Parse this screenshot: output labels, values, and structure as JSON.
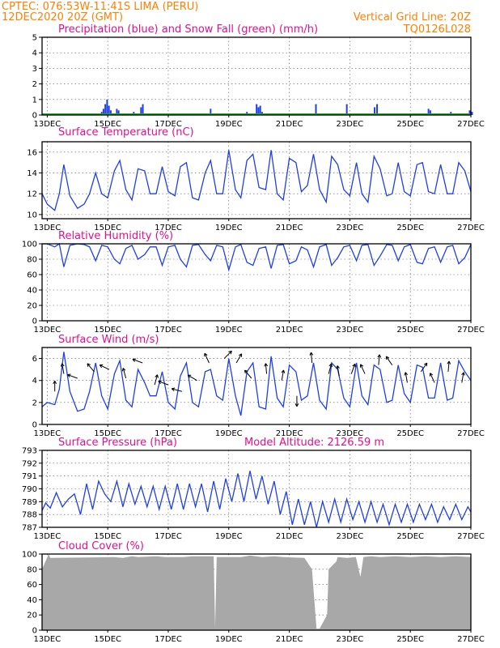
{
  "header": {
    "station": "CPTEC:   076:53W-11:41S   LIMA (PERU)",
    "run": "12DEC2020 20Z (GMT)",
    "grid_note": "Vertical Grid Line: 20Z",
    "code": "TQ0126L028"
  },
  "x_labels": [
    "13DEC",
    "15DEC",
    "17DEC",
    "19DEC",
    "21DEC",
    "23DEC",
    "25DEC",
    "27DEC"
  ],
  "colors": {
    "title": "#e0108c",
    "header": "#ff8000",
    "line": "#1f3fe8",
    "snow": "#22aa22",
    "cloud": "#a8a8a8"
  },
  "panels": {
    "precip": {
      "title": "Precipitation (blue) and Snow Fall (green) (mm/h)"
    },
    "temp": {
      "title": "Surface Temperature (nC)"
    },
    "rh": {
      "title": "Relative Humidity (%)"
    },
    "wind": {
      "title": "Surface Wind (m/s)"
    },
    "pres": {
      "title": "Surface Pressure (hPa)",
      "subtitle": "Model Altitude: 2126.59 m"
    },
    "cloud": {
      "title": "Cloud Cover (%)"
    }
  },
  "chart_data": [
    {
      "id": "precip",
      "type": "bar",
      "title": "Precipitation (blue) and Snow Fall (green) (mm/h)",
      "ylim": [
        0,
        5
      ],
      "yticks": [
        0,
        1,
        2,
        3,
        4,
        5
      ],
      "grid": true,
      "x_unit": "days since 12DEC2020 00Z",
      "x": [
        2.8,
        2.86,
        2.92,
        2.98,
        3.04,
        3.1,
        3.3,
        3.36,
        3.86,
        4.1,
        4.16,
        6.4,
        7.6,
        7.92,
        7.98,
        8.04,
        8.1,
        9.88,
        10.9,
        11.82,
        11.9,
        12.04,
        13.6,
        13.66,
        14.34,
        14.96,
        15.04
      ],
      "values": [
        0.2,
        0.4,
        0.7,
        1.0,
        0.6,
        0.3,
        0.4,
        0.3,
        0.2,
        0.5,
        0.7,
        0.4,
        0.2,
        0.7,
        0.5,
        0.6,
        0.2,
        0.7,
        0.7,
        0.5,
        0.7,
        0.1,
        0.4,
        0.3,
        0.2,
        0.3,
        0.2
      ],
      "series": [
        {
          "name": "Precipitation",
          "color": "blue"
        },
        {
          "name": "Snow Fall",
          "color": "green",
          "values": "0"
        }
      ]
    },
    {
      "id": "temp",
      "type": "line",
      "title": "Surface Temperature (nC)",
      "ylim": [
        9.6,
        17
      ],
      "yticks": [
        10,
        12,
        14,
        16
      ],
      "grid": true,
      "x": [
        0.83,
        1.0,
        1.25,
        1.4,
        1.55,
        1.75,
        2.0,
        2.22,
        2.4,
        2.6,
        2.8,
        3.0,
        3.22,
        3.4,
        3.6,
        3.8,
        4.0,
        4.22,
        4.4,
        4.6,
        4.8,
        5.0,
        5.22,
        5.4,
        5.6,
        5.8,
        6.0,
        6.22,
        6.4,
        6.6,
        6.8,
        7.0,
        7.22,
        7.4,
        7.6,
        7.8,
        8.0,
        8.22,
        8.4,
        8.6,
        8.8,
        9.0,
        9.22,
        9.4,
        9.6,
        9.8,
        10.0,
        10.22,
        10.4,
        10.6,
        10.8,
        11.0,
        11.22,
        11.4,
        11.6,
        11.8,
        12.0,
        12.22,
        12.4,
        12.6,
        12.8,
        13.0,
        13.22,
        13.4,
        13.6,
        13.8,
        14.0,
        14.22,
        14.4,
        14.6,
        14.8,
        15.0
      ],
      "values": [
        12.0,
        11.0,
        10.4,
        12.0,
        14.8,
        11.8,
        10.6,
        11.0,
        12.0,
        14.0,
        12.0,
        11.6,
        14.2,
        15.2,
        12.4,
        11.4,
        14.4,
        14.2,
        12.0,
        12.0,
        14.6,
        12.2,
        11.8,
        14.6,
        15.0,
        11.6,
        11.4,
        14.0,
        15.2,
        12.0,
        12.0,
        16.2,
        12.4,
        11.6,
        15.2,
        15.8,
        12.6,
        12.4,
        16.2,
        12.0,
        11.4,
        15.4,
        15.0,
        12.2,
        12.8,
        15.8,
        12.4,
        11.2,
        15.6,
        14.8,
        12.4,
        11.8,
        15.0,
        12.0,
        11.2,
        15.6,
        14.4,
        11.8,
        12.0,
        15.0,
        12.2,
        11.8,
        14.8,
        15.0,
        12.2,
        12.0,
        14.8,
        12.0,
        12.0,
        15.0,
        14.2,
        12.2
      ]
    },
    {
      "id": "rh",
      "type": "line",
      "title": "Relative Humidity (%)",
      "ylim": [
        0,
        100
      ],
      "yticks": [
        0,
        20,
        40,
        60,
        80,
        100
      ],
      "grid": true,
      "x": [
        0.83,
        1.0,
        1.25,
        1.4,
        1.55,
        1.75,
        2.0,
        2.22,
        2.4,
        2.6,
        2.8,
        3.0,
        3.22,
        3.4,
        3.6,
        3.8,
        4.0,
        4.22,
        4.4,
        4.6,
        4.8,
        5.0,
        5.22,
        5.4,
        5.6,
        5.8,
        6.0,
        6.22,
        6.4,
        6.6,
        6.8,
        7.0,
        7.22,
        7.4,
        7.6,
        7.8,
        8.0,
        8.22,
        8.4,
        8.6,
        8.8,
        9.0,
        9.22,
        9.4,
        9.6,
        9.8,
        10.0,
        10.22,
        10.4,
        10.6,
        10.8,
        11.0,
        11.22,
        11.4,
        11.6,
        11.8,
        12.0,
        12.22,
        12.4,
        12.6,
        12.8,
        13.0,
        13.22,
        13.4,
        13.6,
        13.8,
        14.0,
        14.22,
        14.4,
        14.6,
        14.8,
        15.0
      ],
      "values": [
        100,
        100,
        96,
        100,
        70,
        98,
        100,
        99,
        96,
        78,
        98,
        96,
        80,
        74,
        94,
        98,
        80,
        86,
        96,
        96,
        72,
        96,
        98,
        80,
        70,
        98,
        99,
        86,
        78,
        98,
        96,
        66,
        96,
        99,
        76,
        72,
        94,
        96,
        68,
        98,
        99,
        74,
        78,
        96,
        92,
        70,
        96,
        99,
        72,
        82,
        96,
        98,
        78,
        98,
        99,
        72,
        84,
        99,
        98,
        78,
        96,
        99,
        76,
        74,
        94,
        96,
        76,
        96,
        98,
        74,
        82,
        99
      ]
    },
    {
      "id": "wind",
      "type": "line",
      "title": "Surface Wind (m/s)",
      "ylim": [
        0,
        7
      ],
      "yticks": [
        0,
        2,
        4,
        6
      ],
      "grid": true,
      "x": [
        0.83,
        1.0,
        1.25,
        1.4,
        1.55,
        1.75,
        2.0,
        2.22,
        2.4,
        2.6,
        2.8,
        3.0,
        3.22,
        3.4,
        3.6,
        3.8,
        4.0,
        4.22,
        4.4,
        4.6,
        4.8,
        5.0,
        5.22,
        5.4,
        5.6,
        5.8,
        6.0,
        6.22,
        6.4,
        6.6,
        6.8,
        7.0,
        7.22,
        7.4,
        7.6,
        7.8,
        8.0,
        8.22,
        8.4,
        8.6,
        8.8,
        9.0,
        9.22,
        9.4,
        9.6,
        9.8,
        10.0,
        10.22,
        10.4,
        10.6,
        10.8,
        11.0,
        11.22,
        11.4,
        11.6,
        11.8,
        12.0,
        12.22,
        12.4,
        12.6,
        12.8,
        13.0,
        13.22,
        13.4,
        13.6,
        13.8,
        14.0,
        14.22,
        14.4,
        14.6,
        14.8,
        15.0
      ],
      "values": [
        1.6,
        2.0,
        1.8,
        3.2,
        6.6,
        3.0,
        1.2,
        1.4,
        3.0,
        5.6,
        2.6,
        1.4,
        4.6,
        5.8,
        2.2,
        1.6,
        5.0,
        3.8,
        2.6,
        2.6,
        4.8,
        2.0,
        1.4,
        4.4,
        5.6,
        2.0,
        1.6,
        4.8,
        5.0,
        2.6,
        2.2,
        6.0,
        2.6,
        0.8,
        4.8,
        5.6,
        1.6,
        1.4,
        6.2,
        2.4,
        1.6,
        5.4,
        4.8,
        2.2,
        2.6,
        5.6,
        2.2,
        1.4,
        5.6,
        5.0,
        2.4,
        1.6,
        5.6,
        2.6,
        1.8,
        5.4,
        5.0,
        2.0,
        2.2,
        5.4,
        2.8,
        2.0,
        5.4,
        5.2,
        2.4,
        2.4,
        5.6,
        2.2,
        2.4,
        5.8,
        4.8,
        4.0
      ],
      "arrows": {
        "x": [
          1.25,
          1.55,
          2.0,
          2.55,
          3.05,
          3.6,
          4.15,
          4.55,
          5.0,
          5.45,
          5.95,
          6.35,
          6.85,
          7.25,
          7.75,
          8.25,
          8.75,
          9.25,
          9.75,
          10.3,
          10.65,
          11.05,
          11.5,
          11.95,
          12.4,
          12.9,
          13.35,
          13.8,
          14.25,
          14.7
        ],
        "dir_deg": [
          90,
          100,
          160,
          130,
          155,
          105,
          160,
          75,
          160,
          165,
          150,
          115,
          45,
          60,
          130,
          95,
          80,
          270,
          95,
          75,
          100,
          70,
          115,
          85,
          125,
          100,
          55,
          115,
          85,
          80
        ],
        "speed": [
          3.0,
          4.6,
          4.2,
          4.8,
          5.0,
          4.2,
          5.6,
          3.6,
          3.6,
          3.0,
          4.0,
          5.6,
          6.0,
          5.6,
          4.2,
          4.6,
          4.0,
          2.6,
          5.6,
          4.6,
          4.4,
          4.6,
          4.6,
          5.4,
          5.4,
          3.8,
          4.8,
          3.8,
          4.8,
          3.8
        ]
      }
    },
    {
      "id": "pres",
      "type": "line",
      "title": "Surface Pressure (hPa)",
      "subtitle": "Model Altitude: 2126.59 m",
      "ylim": [
        787,
        793
      ],
      "yticks": [
        787,
        788,
        789,
        790,
        791,
        792,
        793
      ],
      "grid": true,
      "x": [
        0.83,
        0.95,
        1.1,
        1.3,
        1.5,
        1.7,
        1.9,
        2.1,
        2.3,
        2.5,
        2.7,
        2.9,
        3.1,
        3.3,
        3.5,
        3.7,
        3.9,
        4.1,
        4.3,
        4.5,
        4.7,
        4.9,
        5.1,
        5.3,
        5.5,
        5.7,
        5.9,
        6.1,
        6.3,
        6.5,
        6.7,
        6.9,
        7.1,
        7.3,
        7.5,
        7.7,
        7.9,
        8.1,
        8.3,
        8.5,
        8.7,
        8.9,
        9.1,
        9.3,
        9.5,
        9.7,
        9.9,
        10.1,
        10.3,
        10.5,
        10.7,
        10.9,
        11.1,
        11.3,
        11.5,
        11.7,
        11.9,
        12.1,
        12.3,
        12.5,
        12.7,
        12.9,
        13.1,
        13.3,
        13.5,
        13.7,
        13.9,
        14.1,
        14.3,
        14.5,
        14.7,
        14.9,
        15.0
      ],
      "values": [
        788.3,
        788.9,
        788.5,
        789.7,
        788.6,
        789.2,
        789.6,
        788.0,
        790.4,
        788.4,
        790.6,
        789.6,
        789.0,
        790.6,
        788.6,
        790.4,
        788.8,
        790.2,
        788.6,
        790.2,
        788.4,
        790.2,
        788.4,
        790.4,
        788.4,
        790.4,
        788.6,
        790.4,
        788.2,
        790.6,
        788.4,
        790.8,
        789.0,
        791.2,
        789.0,
        791.4,
        789.2,
        791.0,
        788.8,
        790.6,
        788.0,
        789.8,
        787.2,
        789.2,
        787.2,
        789.0,
        787.0,
        789.0,
        787.4,
        789.2,
        787.4,
        789.2,
        787.6,
        789.0,
        787.4,
        789.0,
        787.4,
        788.8,
        787.2,
        788.8,
        787.4,
        788.8,
        787.4,
        788.8,
        787.6,
        788.8,
        787.4,
        788.6,
        787.6,
        788.8,
        787.6,
        788.6,
        788.2
      ]
    },
    {
      "id": "cloud",
      "type": "area",
      "title": "Cloud Cover (%)",
      "ylim": [
        0,
        100
      ],
      "yticks": [
        0,
        20,
        40,
        60,
        80,
        100
      ],
      "grid": true,
      "x": [
        0.83,
        1.05,
        1.1,
        3.2,
        3.5,
        3.8,
        4.0,
        4.6,
        4.9,
        5.5,
        5.8,
        6.5,
        6.55,
        6.6,
        7.4,
        7.7,
        8.1,
        8.5,
        8.8,
        9.5,
        9.75,
        9.9,
        10.0,
        10.25,
        10.3,
        10.55,
        10.6,
        10.9,
        11.2,
        11.35,
        11.45,
        11.7,
        12.0,
        12.5,
        13.0,
        13.5,
        14.0,
        14.5,
        15.0
      ],
      "values": [
        80,
        100,
        95,
        96,
        95,
        97,
        96,
        97,
        96,
        96,
        97,
        97,
        3,
        96,
        96,
        98,
        96,
        97,
        96,
        95,
        80,
        2,
        2,
        20,
        80,
        90,
        96,
        95,
        96,
        70,
        96,
        97,
        96,
        97,
        96,
        97,
        96,
        97,
        96
      ]
    }
  ]
}
